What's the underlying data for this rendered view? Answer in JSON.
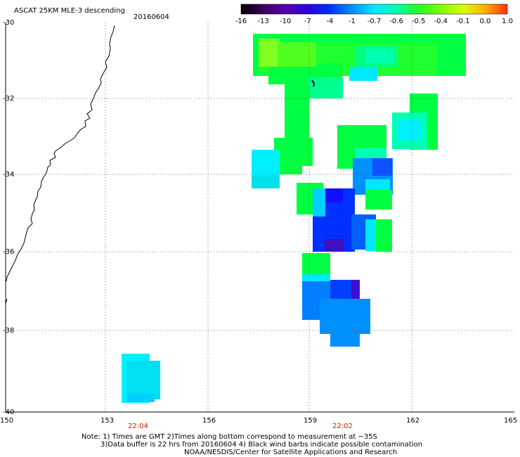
{
  "header": {
    "title": "ASCAT 25KM MLE-3 descending",
    "date": "20160604"
  },
  "colorbar": {
    "labels": [
      "-16",
      "-13",
      "-10",
      "-7",
      "-4",
      "-1",
      "-0.7",
      "-0.6",
      "-0.5",
      "-0.4",
      "-0.1",
      "0.0",
      "1.0"
    ],
    "colors": [
      "#000000",
      "#3a0060",
      "#5a00b0",
      "#2a00e0",
      "#0030ff",
      "#0090ff",
      "#00e8ff",
      "#00ffb0",
      "#20ff20",
      "#80ff00",
      "#d8ff00",
      "#ffb000",
      "#ff3000"
    ]
  },
  "axes": {
    "y_labels": [
      "-30",
      "-32",
      "-34",
      "-36",
      "-38",
      "-40"
    ],
    "x_labels": [
      "150",
      "153",
      "156",
      "159",
      "162",
      "165"
    ]
  },
  "times": [
    "22:04",
    "22:02"
  ],
  "footer": {
    "note1": "Note: 1) Times are GMT 2)Times along bottom correspond to measurement at ~35S",
    "note2": "3)Data buffer is 22 hrs from 20160604 4) Black wind barbs indicate possible contamination",
    "credit": "NOAA/NESDIS/Center for Satellite Applications and Research"
  }
}
